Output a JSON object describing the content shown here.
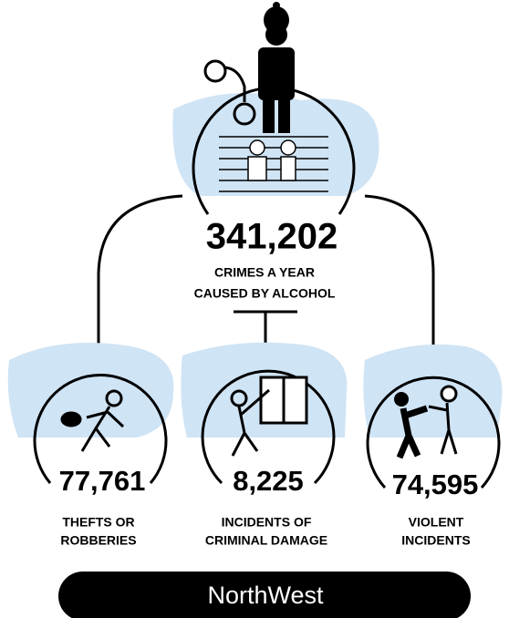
{
  "main": {
    "value": "341,202",
    "label_lines": [
      "CRIMES A YEAR",
      "CAUSED BY ALCOHOL"
    ]
  },
  "items": [
    {
      "value": "77,761",
      "label_lines": [
        "THEFTS OR",
        "ROBBERIES"
      ]
    },
    {
      "value": "8,225",
      "label_lines": [
        "INCIDENTS OF",
        "CRIMINAL DAMAGE"
      ]
    },
    {
      "value": "74,595",
      "label_lines": [
        "VIOLENT",
        "INCIDENTS"
      ]
    }
  ],
  "footer": {
    "region": "NorthWest"
  }
}
